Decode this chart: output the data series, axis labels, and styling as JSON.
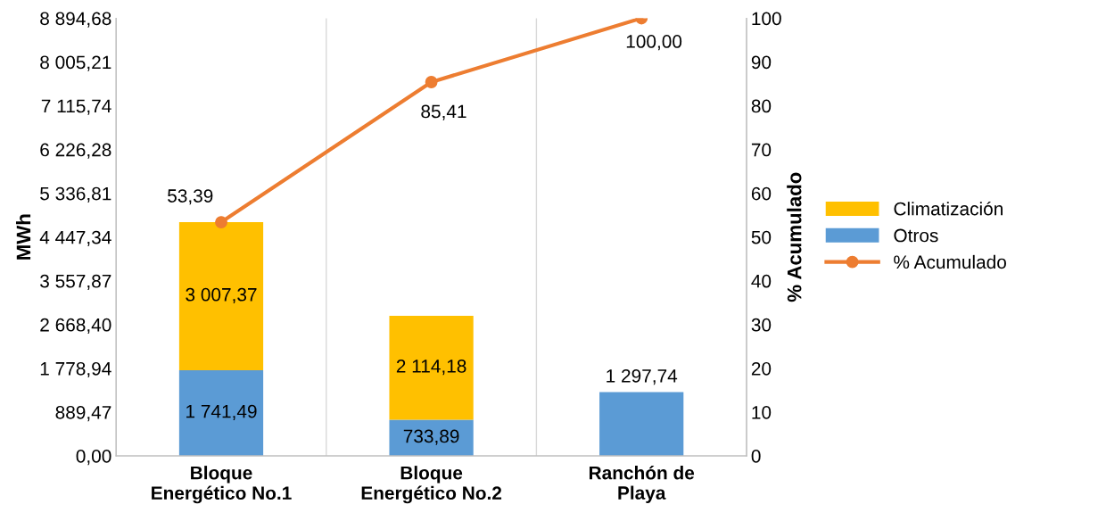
{
  "chart_data": {
    "type": "bar",
    "stacked": true,
    "categories": [
      "Bloque\nEnergético No.1",
      "Bloque\nEnergético No.2",
      "Ranchón de\nPlaya"
    ],
    "ylabel": "MWh",
    "y2label": "% Acumulado",
    "ylim": [
      0,
      8894.68
    ],
    "yticks": [
      {
        "value": 0,
        "label": "0,00"
      },
      {
        "value": 889.47,
        "label": "889,47"
      },
      {
        "value": 1778.94,
        "label": "1 778,94"
      },
      {
        "value": 2668.4,
        "label": "2 668,40"
      },
      {
        "value": 3557.87,
        "label": "3 557,87"
      },
      {
        "value": 4447.34,
        "label": "4 447,34"
      },
      {
        "value": 5336.81,
        "label": "5 336,81"
      },
      {
        "value": 6226.28,
        "label": "6 226,28"
      },
      {
        "value": 7115.74,
        "label": "7 115,74"
      },
      {
        "value": 8005.21,
        "label": "8 005,21"
      },
      {
        "value": 8894.68,
        "label": "8 894,68"
      }
    ],
    "y2lim": [
      0,
      100
    ],
    "y2ticks": [
      0,
      10,
      20,
      30,
      40,
      50,
      60,
      70,
      80,
      90,
      100
    ],
    "grid": "x",
    "legend": "right",
    "series": [
      {
        "name": "Otros",
        "color": "#5b9bd5",
        "values": [
          1741.49,
          733.89,
          1297.74
        ],
        "value_labels": [
          "1 741,49",
          "733,89",
          "1 297,74"
        ]
      },
      {
        "name": "Climatización",
        "color": "#ffc000",
        "values": [
          3007.37,
          2114.18,
          null
        ],
        "value_labels": [
          "3 007,37",
          "2 114,18",
          null
        ]
      },
      {
        "name": "% Acumulado",
        "type": "line",
        "axis": "y2",
        "color": "#ed7d31",
        "marker": "circle",
        "values": [
          53.39,
          85.41,
          100.0
        ],
        "value_labels": [
          "53,39",
          "85,41",
          "100,00"
        ]
      }
    ]
  }
}
